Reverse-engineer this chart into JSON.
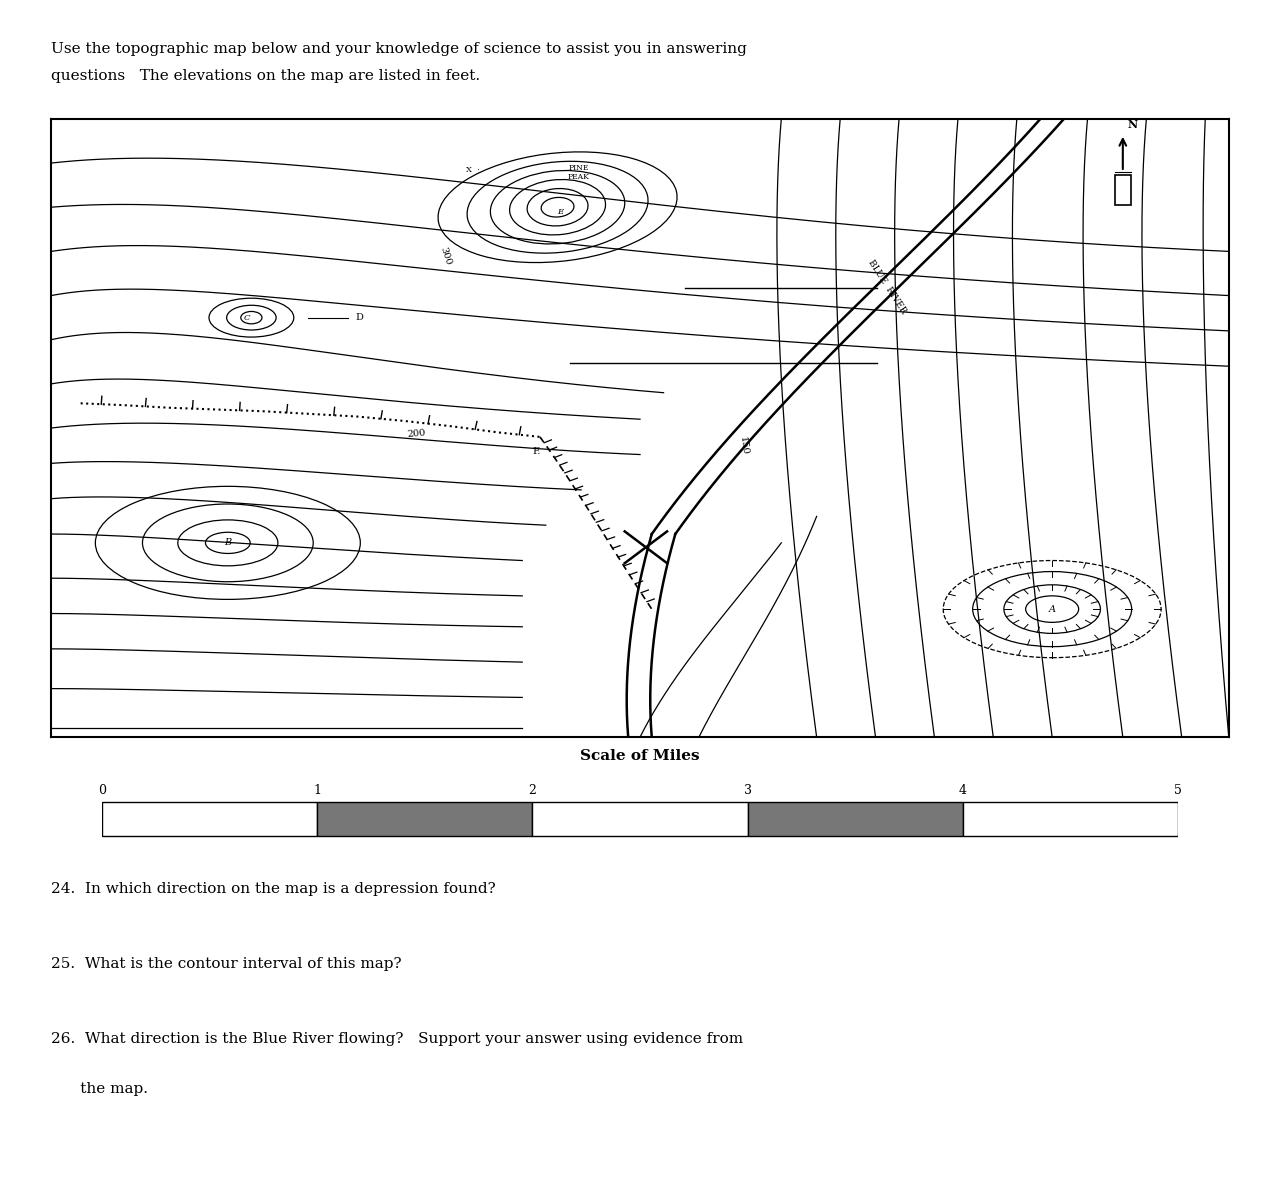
{
  "title_line1": "Use the topographic map below and your knowledge of science to assist you in answering",
  "title_line2": "questions   The elevations on the map are listed in feet.",
  "scale_label": "Scale of Miles",
  "scale_ticks": [
    0,
    1,
    2,
    3,
    4,
    5
  ],
  "q24": "24.  In which direction on the map is a depression found?",
  "q25": "25.  What is the contour interval of this map?",
  "q26a": "26.  What direction is the Blue River flowing?   Support your answer using evidence from",
  "q26b": "      the map.",
  "bg_color": "#ffffff"
}
